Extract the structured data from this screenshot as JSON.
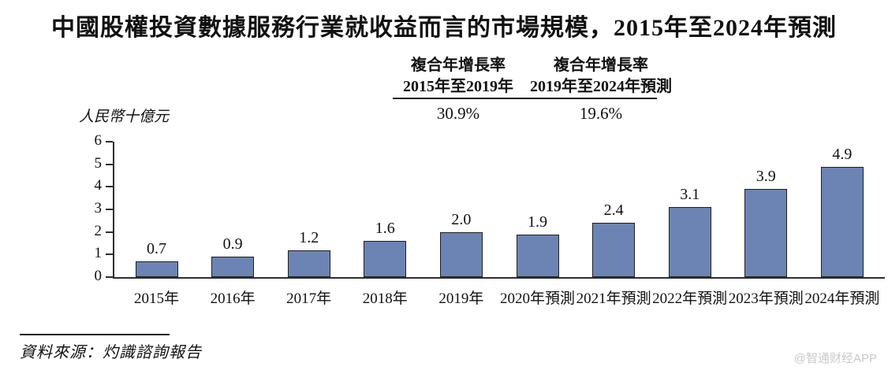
{
  "title": "中國股權投資數據服務行業就收益而言的市場規模，2015年至2024年預測",
  "unit_label": "人民幣十億元",
  "cagr_table": {
    "columns": [
      {
        "header_line1": "複合年增長率",
        "header_line2": "2015年至2019年",
        "value": "30.9%"
      },
      {
        "header_line1": "複合年增長率",
        "header_line2": "2019年至2024年預測",
        "value": "19.6%"
      }
    ]
  },
  "source": "資料來源：灼識諮詢報告",
  "watermark": "@智通财经APP",
  "colors": {
    "bar_fill": "#6c84b4",
    "bar_border": "#1f1f1f",
    "axis": "#2e2e2e",
    "watermark_text": "#c9c9c9",
    "text": "#111111"
  },
  "chart_data": {
    "type": "bar",
    "title": "中國股權投資數據服務行業就收益而言的市場規模，2015年至2024年預測",
    "categories": [
      "2015年",
      "2016年",
      "2017年",
      "2018年",
      "2019年",
      "2020年預測",
      "2021年預測",
      "2022年預測",
      "2023年預測",
      "2024年預測"
    ],
    "values": [
      0.7,
      0.9,
      1.2,
      1.6,
      2.0,
      1.9,
      2.4,
      3.1,
      3.9,
      4.9
    ],
    "value_labels": [
      "0.7",
      "0.9",
      "1.2",
      "1.6",
      "2.0",
      "1.9",
      "2.4",
      "3.1",
      "3.9",
      "4.9"
    ],
    "xlabel": "",
    "ylabel": "人民幣十億元",
    "ylim": [
      0,
      6
    ],
    "yticks": [
      0,
      1,
      2,
      3,
      4,
      5,
      6
    ],
    "grid": false,
    "legend": null,
    "annotations": {
      "cagr_2015_2019": "30.9%",
      "cagr_2019_2024_forecast": "19.6%"
    }
  }
}
